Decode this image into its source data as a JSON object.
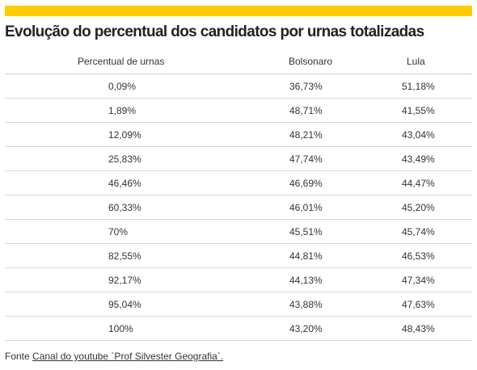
{
  "title": "Evolução do percentual dos candidatos por urnas totalizadas",
  "colors": {
    "accent_bar": "#ffcc00",
    "text": "#333333",
    "row_divider": "#d8d8d8"
  },
  "table": {
    "headers": [
      "Percentual de urnas",
      "Bolsonaro",
      "Lula"
    ],
    "rows": [
      [
        "0,09%",
        "36,73%",
        "51,18%"
      ],
      [
        "1,89%",
        "48,71%",
        "41,55%"
      ],
      [
        "12,09%",
        "48,21%",
        "43,04%"
      ],
      [
        "25,83%",
        "47,74%",
        "43,49%"
      ],
      [
        "46,46%",
        "46,69%",
        "44,47%"
      ],
      [
        "60,33%",
        "46,01%",
        "45,20%"
      ],
      [
        "70%",
        "45,51%",
        "45,74%"
      ],
      [
        "82,55%",
        "44,81%",
        "46,53%"
      ],
      [
        "92,17%",
        "44,13%",
        "47,34%"
      ],
      [
        "95,04%",
        "43,88%",
        "47,63%"
      ],
      [
        "100%",
        "43,20%",
        "48,43%"
      ]
    ]
  },
  "source": {
    "prefix": "Fonte ",
    "link_text": "Canal do youtube `Prof Silvester Geografia`."
  },
  "chart_data": {
    "type": "table",
    "title": "Evolução do percentual dos candidatos por urnas totalizadas",
    "columns": [
      "Percentual de urnas",
      "Bolsonaro",
      "Lula"
    ],
    "x": [
      0.09,
      1.89,
      12.09,
      25.83,
      46.46,
      60.33,
      70,
      82.55,
      92.17,
      95.04,
      100
    ],
    "series": [
      {
        "name": "Bolsonaro",
        "values": [
          36.73,
          48.71,
          48.21,
          47.74,
          46.69,
          46.01,
          45.51,
          44.81,
          44.13,
          43.88,
          43.2
        ]
      },
      {
        "name": "Lula",
        "values": [
          51.18,
          41.55,
          43.04,
          43.49,
          44.47,
          45.2,
          45.74,
          46.53,
          47.34,
          47.63,
          48.43
        ]
      }
    ]
  }
}
